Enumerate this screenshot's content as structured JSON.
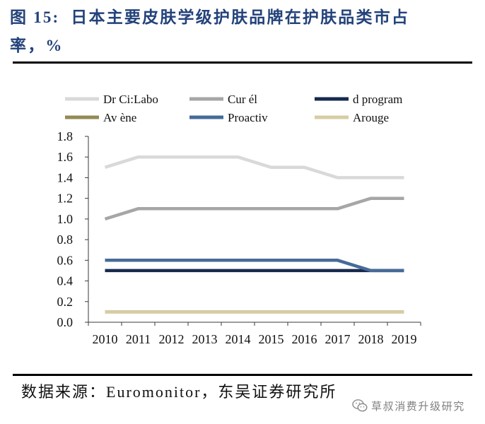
{
  "title": {
    "line1": "图 15:  日本主要皮肤学级护肤品牌在护肤品类市占",
    "line2": "率，%",
    "color": "#23427a"
  },
  "chart_data": {
    "type": "line",
    "categories": [
      "2010",
      "2011",
      "2012",
      "2013",
      "2014",
      "2015",
      "2016",
      "2017",
      "2018",
      "2019"
    ],
    "series": [
      {
        "name": "Dr Ci:Labo",
        "color": "#d9d9d9",
        "values": [
          1.5,
          1.6,
          1.6,
          1.6,
          1.6,
          1.5,
          1.5,
          1.4,
          1.4,
          1.4
        ]
      },
      {
        "name": "Cur él",
        "color": "#a6a6a6",
        "values": [
          1.0,
          1.1,
          1.1,
          1.1,
          1.1,
          1.1,
          1.1,
          1.1,
          1.2,
          1.2
        ]
      },
      {
        "name": "d program",
        "color": "#16294d",
        "values": [
          0.5,
          0.5,
          0.5,
          0.5,
          0.5,
          0.5,
          0.5,
          0.5,
          0.5,
          0.5
        ]
      },
      {
        "name": "Av ène",
        "color": "#938953",
        "values": [
          0.1,
          0.1,
          0.1,
          0.1,
          0.1,
          0.1,
          0.1,
          0.1,
          0.1,
          0.1
        ]
      },
      {
        "name": "Proactiv",
        "color": "#466b98",
        "values": [
          0.6,
          0.6,
          0.6,
          0.6,
          0.6,
          0.6,
          0.6,
          0.6,
          0.5,
          0.5
        ]
      },
      {
        "name": "Arouge",
        "color": "#d6cda4",
        "values": [
          0.1,
          0.1,
          0.1,
          0.1,
          0.1,
          0.1,
          0.1,
          0.1,
          0.1,
          0.1
        ]
      }
    ],
    "ylim": [
      0,
      1.8
    ],
    "yticks": [
      0,
      0.2,
      0.4,
      0.6,
      0.8,
      1.0,
      1.2,
      1.4,
      1.6,
      1.8
    ],
    "ytick_labels": [
      "0.0",
      "0.2",
      "0.4",
      "0.6",
      "0.8",
      "1.0",
      "1.2",
      "1.4",
      "1.6",
      "1.8"
    ],
    "legend": "top",
    "grid": false
  },
  "source": "数据来源：Euromonitor，东吴证券研究所",
  "watermark": {
    "icon": "wechat-icon",
    "text": "草叔消费升级研究"
  }
}
